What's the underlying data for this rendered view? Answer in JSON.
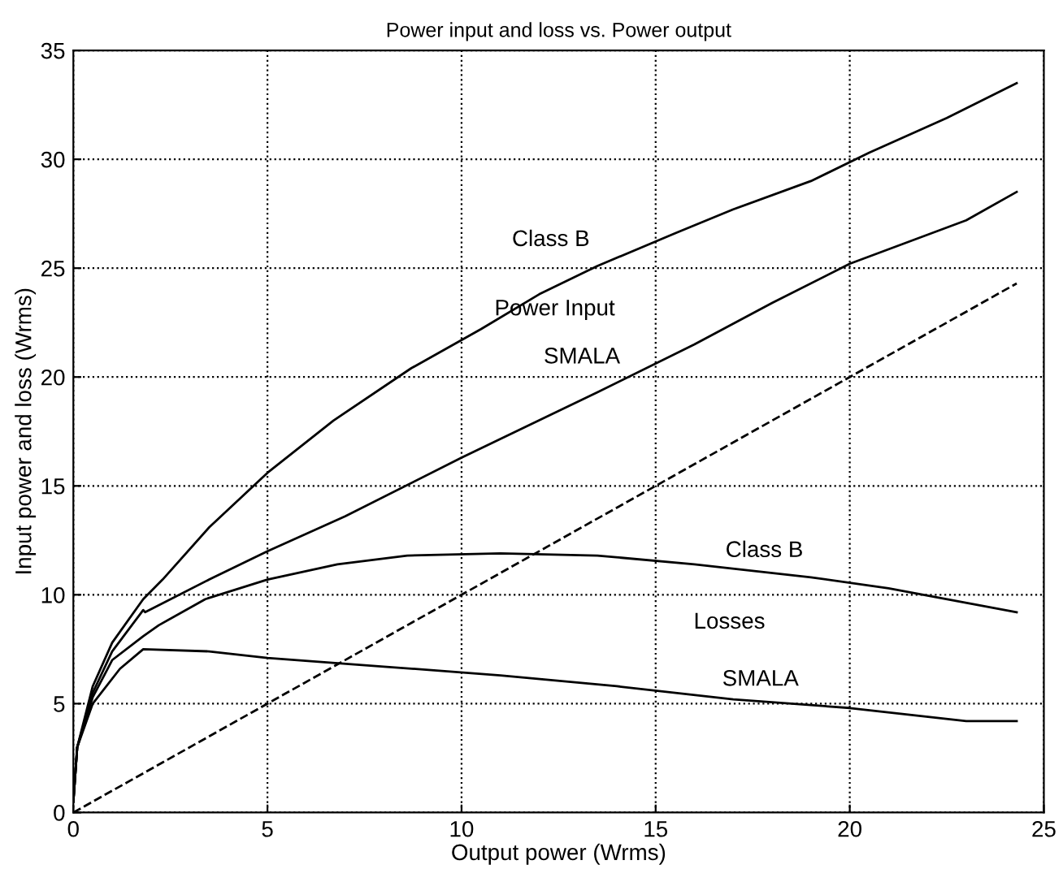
{
  "chart_data": {
    "type": "line",
    "title": "Power input and loss vs. Power output",
    "xlabel": "Output power (Wrms)",
    "ylabel": "Input power and loss (Wrms)",
    "xlim": [
      0,
      25
    ],
    "ylim": [
      0,
      35
    ],
    "xticks": [
      0,
      5,
      10,
      15,
      20,
      25
    ],
    "yticks": [
      0,
      5,
      10,
      15,
      20,
      25,
      30,
      35
    ],
    "grid": true,
    "legend": false,
    "series": [
      {
        "color": "#000000",
        "line_style": "solid",
        "x": [
          0,
          0.1,
          0.5,
          1,
          1.8,
          2.3,
          3.5,
          5,
          6.7,
          8.7,
          10.5,
          12,
          13.5,
          15.5,
          17,
          19,
          20.5,
          22.5,
          24.3
        ],
        "values": [
          0.5,
          3,
          5.8,
          7.8,
          9.8,
          10.7,
          13.1,
          15.6,
          18,
          20.4,
          22.2,
          23.8,
          25.1,
          26.6,
          27.7,
          29,
          30.3,
          31.9,
          33.5
        ]
      },
      {
        "color": "#000000",
        "line_style": "solid",
        "x": [
          0,
          0.1,
          0.5,
          1,
          1.8,
          1.85,
          3.5,
          5,
          7,
          10,
          13.5,
          16,
          18,
          20,
          23,
          24.3
        ],
        "values": [
          0.5,
          3,
          5.5,
          7.4,
          9.3,
          9.2,
          10.7,
          12,
          13.6,
          16.3,
          19.3,
          21.5,
          23.4,
          25.2,
          27.2,
          28.5
        ]
      },
      {
        "color": "#000000",
        "line_style": "solid",
        "x": [
          0,
          0.1,
          0.5,
          1,
          1.8,
          2.2,
          3.4,
          5,
          6.8,
          8.6,
          11,
          13.5,
          16,
          19,
          21,
          24.3
        ],
        "values": [
          0.5,
          3,
          5.3,
          7,
          8.1,
          8.6,
          9.8,
          10.7,
          11.4,
          11.8,
          11.9,
          11.8,
          11.4,
          10.8,
          10.3,
          9.2
        ]
      },
      {
        "color": "#000000",
        "line_style": "solid",
        "x": [
          0,
          0.1,
          0.5,
          1.2,
          1.8,
          3.5,
          5,
          8,
          11,
          14,
          17,
          20,
          23,
          24.3
        ],
        "values": [
          0.5,
          3,
          5,
          6.6,
          7.5,
          7.4,
          7.1,
          6.7,
          6.3,
          5.8,
          5.2,
          4.8,
          4.2,
          4.2
        ]
      },
      {
        "color": "#000000",
        "line_style": "dashed",
        "x": [
          0,
          24.3
        ],
        "values": [
          0,
          24.3
        ]
      }
    ],
    "annotations": [
      "Class B",
      "Power Input",
      "SMALA",
      "Class B",
      "Losses",
      "SMALA"
    ]
  }
}
